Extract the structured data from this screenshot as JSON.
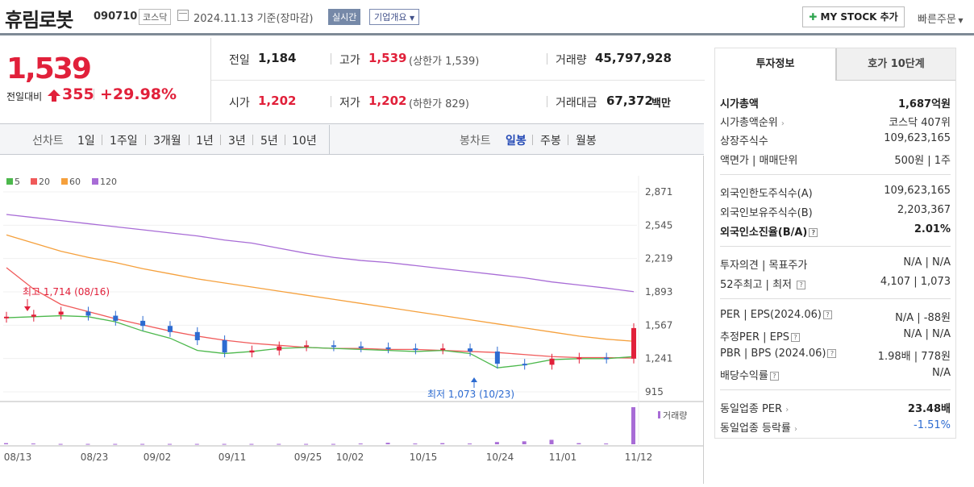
{
  "header": {
    "stock_name": "휴림로봇",
    "stock_code": "090710",
    "market": "코스닥",
    "date_text": "2024.11.13  기준(장마감)",
    "realtime_label": "실시간",
    "company_overview_label": "기업개요",
    "my_stock_label": "MY STOCK 추가",
    "quick_order_label": "빠른주문"
  },
  "price": {
    "current": "1,539",
    "compare_label": "전일대비",
    "change": "355",
    "change_rate": "+29.98%",
    "colors": {
      "up": "#e1203a"
    }
  },
  "quote": {
    "prev_close_label": "전일",
    "prev_close": "1,184",
    "high_label": "고가",
    "high": "1,539",
    "upper_limit": "(상한가 1,539)",
    "volume_label": "거래량",
    "volume": "45,797,928",
    "open_label": "시가",
    "open": "1,202",
    "low_label": "저가",
    "low": "1,202",
    "lower_limit": "(하한가 829)",
    "amount_label": "거래대금",
    "amount": "67,372",
    "amount_unit": "백만"
  },
  "chart_tabs": {
    "line_label": "선차트",
    "line_periods": [
      "1일",
      "1주일",
      "3개월",
      "1년",
      "3년",
      "5년",
      "10년"
    ],
    "candle_label": "봉차트",
    "candle_periods": [
      "일봉",
      "주봉",
      "월봉"
    ],
    "active": "일봉"
  },
  "chart_data": {
    "type": "candlestick",
    "legend": [
      {
        "name": "5",
        "color": "#4cb84c"
      },
      {
        "name": "20",
        "color": "#f05a5a"
      },
      {
        "name": "60",
        "color": "#f5a03c"
      },
      {
        "name": "120",
        "color": "#a86cd6"
      }
    ],
    "y_ticks": [
      "2,871",
      "2,545",
      "2,219",
      "1,893",
      "1,567",
      "1,241",
      "915"
    ],
    "ylim": [
      915,
      2871
    ],
    "x_ticks": [
      "08/13",
      "08/23",
      "09/02",
      "09/11",
      "09/25",
      "10/02",
      "10/15",
      "10/24",
      "11/01",
      "11/12"
    ],
    "high_annotation": "최고 1,714 (08/16)",
    "low_annotation": "최저 1,073 (10/23)",
    "volume_label": "거래량",
    "ma120": [
      2650,
      2620,
      2590,
      2560,
      2530,
      2500,
      2470,
      2440,
      2400,
      2370,
      2320,
      2270,
      2230,
      2200,
      2180,
      2150,
      2120,
      2090,
      2060,
      2030,
      1990,
      1960,
      1930,
      1895
    ],
    "ma60": [
      2450,
      2370,
      2290,
      2230,
      2180,
      2120,
      2070,
      2020,
      1980,
      1940,
      1900,
      1860,
      1820,
      1780,
      1740,
      1700,
      1660,
      1620,
      1580,
      1540,
      1500,
      1460,
      1430,
      1410
    ],
    "ma20": [
      2130,
      1920,
      1770,
      1700,
      1630,
      1570,
      1510,
      1460,
      1420,
      1390,
      1370,
      1350,
      1340,
      1340,
      1330,
      1330,
      1320,
      1310,
      1300,
      1280,
      1260,
      1250,
      1250,
      1245
    ],
    "ma5": [
      1640,
      1650,
      1660,
      1650,
      1600,
      1510,
      1440,
      1320,
      1290,
      1310,
      1340,
      1350,
      1340,
      1330,
      1320,
      1310,
      1320,
      1290,
      1150,
      1180,
      1230,
      1240,
      1240,
      1260
    ],
    "closes": [
      1650,
      1670,
      1700,
      1660,
      1610,
      1560,
      1500,
      1420,
      1300,
      1320,
      1360,
      1370,
      1360,
      1350,
      1340,
      1330,
      1340,
      1310,
      1190,
      1180,
      1240,
      1250,
      1240,
      1539
    ],
    "volumes": [
      3,
      2,
      1,
      1,
      1,
      1,
      1,
      1,
      1,
      1,
      1,
      1,
      1,
      2,
      4,
      2,
      3,
      2,
      6,
      8,
      12,
      3,
      2,
      100
    ]
  },
  "sidebar": {
    "tab_info": "투자정보",
    "tab_orderbook": "호가 10단계",
    "market_cap_label": "시가총액",
    "market_cap": "1,687억원",
    "market_cap_rank_label": "시가총액순위",
    "market_cap_rank": "코스닥 407위",
    "shares_label": "상장주식수",
    "shares": "109,623,165",
    "par_label": "액면가 | 매매단위",
    "par": "500원 | 1주",
    "foreign_limit_label": "외국인한도주식수(A)",
    "foreign_limit": "109,623,165",
    "foreign_hold_label": "외국인보유주식수(B)",
    "foreign_hold": "2,203,367",
    "foreign_rate_label": "외국인소진율(B/A)",
    "foreign_rate": "2.01%",
    "opinion_label": "투자의견 | 목표주가",
    "opinion": "N/A | N/A",
    "w52_label": "52주최고 | 최저",
    "w52": "4,107 | 1,073",
    "per_label": "PER | EPS(2024.06)",
    "per": "N/A | -88원",
    "est_per_label": "추정PER | EPS",
    "est_per": "N/A | N/A",
    "pbr_label": "PBR | BPS (2024.06)",
    "pbr": "1.98배 | 778원",
    "div_label": "배당수익률",
    "div": "N/A",
    "sector_per_label": "동일업종 PER",
    "sector_per": "23.48배",
    "sector_change_label": "동일업종 등락률",
    "sector_change": "-1.51%"
  }
}
